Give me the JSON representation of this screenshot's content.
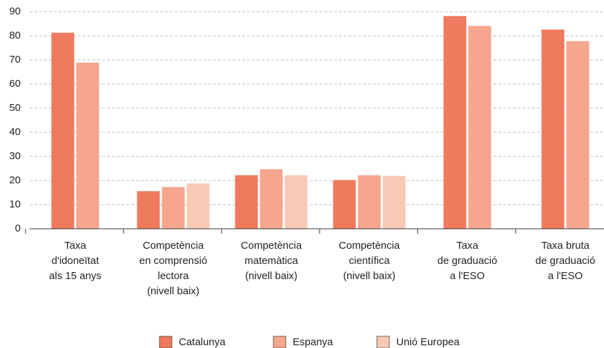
{
  "chart_data": {
    "type": "bar",
    "categories": [
      [
        "Taxa",
        "d'idoneïtat",
        "als 15 anys"
      ],
      [
        "Competència",
        "en comprensió",
        "lectora",
        "(nivell baix)"
      ],
      [
        "Competència",
        "matemàtica",
        "(nivell baix)"
      ],
      [
        "Competència",
        "científica",
        "(nivell baix)"
      ],
      [
        "Taxa",
        "de graduació",
        "a l'ESO"
      ],
      [
        "Taxa bruta",
        "de graduació",
        "a l'ESO"
      ]
    ],
    "series": [
      {
        "name": "Catalunya",
        "color": "#ef7a5e",
        "values": [
          81.3,
          15.6,
          22.2,
          20.2,
          88.2,
          82.6
        ]
      },
      {
        "name": "Espanya",
        "color": "#f5a68d",
        "values": [
          68.9,
          17.3,
          24.7,
          22.2,
          84.1,
          77.8
        ]
      },
      {
        "name": "Unió Europea",
        "color": "#f9c9b6",
        "values": [
          null,
          18.8,
          22.2,
          21.9,
          null,
          null
        ]
      }
    ],
    "ylim": [
      0,
      90
    ],
    "yticks": [
      0,
      10,
      20,
      30,
      40,
      50,
      60,
      70,
      80,
      90
    ],
    "grid": true,
    "legend": "bottom"
  }
}
